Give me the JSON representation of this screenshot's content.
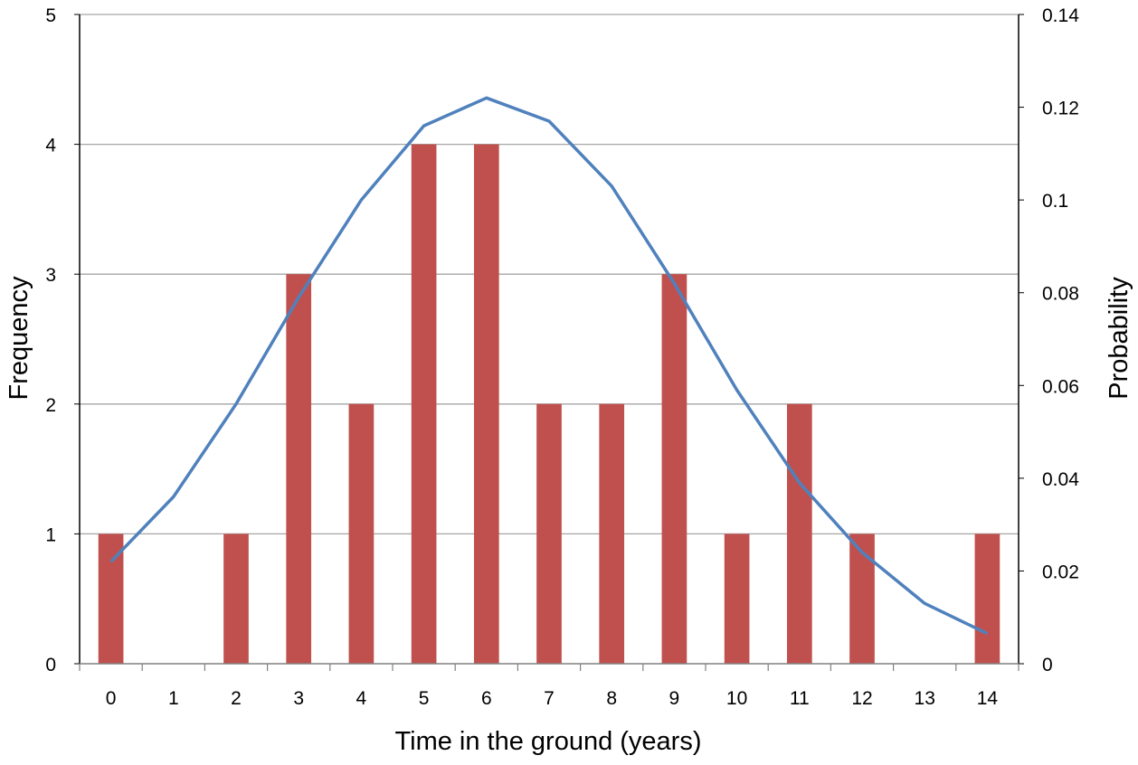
{
  "chart_data": {
    "type": "bar",
    "title": "",
    "xlabel": "Time in the ground (years)",
    "ylabel": "Frequency",
    "y2label": "Probability",
    "categories": [
      "0",
      "1",
      "2",
      "3",
      "4",
      "5",
      "6",
      "7",
      "8",
      "9",
      "10",
      "11",
      "12",
      "13",
      "14"
    ],
    "ylim": [
      0,
      5
    ],
    "y_ticks": [
      "0",
      "1",
      "2",
      "3",
      "4",
      "5"
    ],
    "y2lim": [
      0,
      0.14
    ],
    "y2_ticks": [
      "0",
      "0.02",
      "0.04",
      "0.06",
      "0.08",
      "0.1",
      "0.12",
      "0.14"
    ],
    "grid": true,
    "legend": "none",
    "series": [
      {
        "kind": "bar",
        "axis": "left",
        "color": "#C0504D",
        "values": [
          1,
          0,
          1,
          3,
          2,
          4,
          4,
          2,
          2,
          3,
          1,
          2,
          1,
          0,
          1
        ]
      },
      {
        "kind": "line",
        "axis": "right",
        "color": "#4F81BD",
        "values": [
          0.022,
          0.036,
          0.056,
          0.079,
          0.1,
          0.116,
          0.122,
          0.117,
          0.103,
          0.082,
          0.059,
          0.039,
          0.024,
          0.013,
          0.0065
        ]
      }
    ]
  }
}
